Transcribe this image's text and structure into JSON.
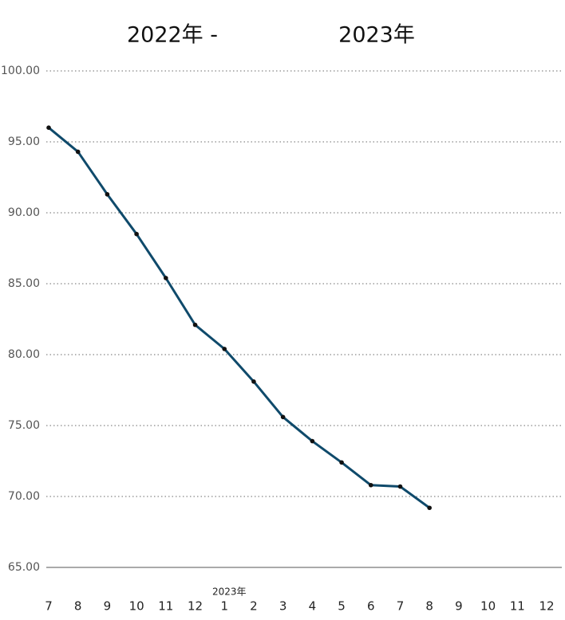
{
  "chart_data": {
    "type": "line",
    "title": "2022年 -",
    "title_right": "2023年",
    "x_annotation": "2023年",
    "categories": [
      "7",
      "8",
      "9",
      "10",
      "11",
      "12",
      "1",
      "2",
      "3",
      "4",
      "5",
      "6",
      "7",
      "8",
      "9",
      "10",
      "11",
      "12"
    ],
    "series": [
      {
        "color": "#0f4a6b",
        "values": [
          96.0,
          94.3,
          91.3,
          88.5,
          85.4,
          82.1,
          80.4,
          78.1,
          75.6,
          73.9,
          72.4,
          70.8,
          70.7,
          69.2,
          null,
          null,
          null,
          null
        ]
      }
    ],
    "ylim": [
      65,
      100
    ],
    "yticks": [
      {
        "value": 65,
        "label": "65.00"
      },
      {
        "value": 70,
        "label": "70.00"
      },
      {
        "value": 75,
        "label": "75.00"
      },
      {
        "value": 80,
        "label": "80.00"
      },
      {
        "value": 85,
        "label": "85.00"
      },
      {
        "value": 90,
        "label": "90.00"
      },
      {
        "value": 95,
        "label": "95.00"
      },
      {
        "value": 100,
        "label": "100.00"
      }
    ],
    "grid": true
  }
}
